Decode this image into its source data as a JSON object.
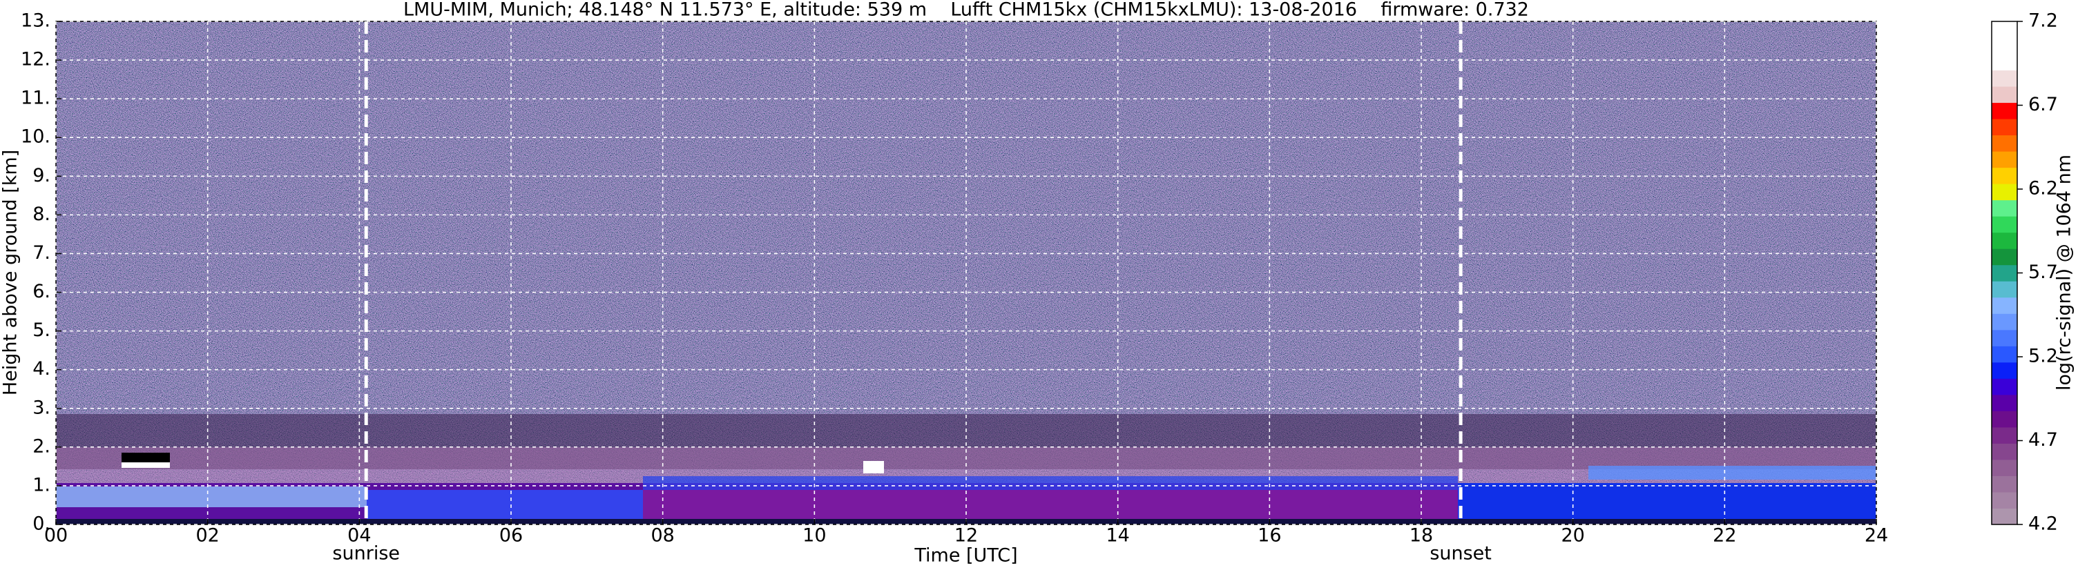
{
  "chart_data": {
    "type": "heatmap",
    "title": "LMU-MIM, Munich; 48.148° N 11.573° E, altitude: 539 m    Lufft CHM15kx (CHM15kxLMU): 13-08-2016    firmware: 0.732",
    "xlabel": "Time [UTC]",
    "ylabel": "Height above ground [km]",
    "xlim": [
      0,
      24
    ],
    "xticks": [
      {
        "value": 0,
        "label": "00"
      },
      {
        "value": 2,
        "label": "02"
      },
      {
        "value": 4,
        "label": "04"
      },
      {
        "value": 6,
        "label": "06"
      },
      {
        "value": 8,
        "label": "08"
      },
      {
        "value": 10,
        "label": "10"
      },
      {
        "value": 12,
        "label": "12"
      },
      {
        "value": 14,
        "label": "14"
      },
      {
        "value": 16,
        "label": "16"
      },
      {
        "value": 18,
        "label": "18"
      },
      {
        "value": 20,
        "label": "20"
      },
      {
        "value": 22,
        "label": "22"
      },
      {
        "value": 24,
        "label": "24"
      }
    ],
    "ylim": [
      0,
      13
    ],
    "yticks": [
      {
        "value": 0,
        "label": "0."
      },
      {
        "value": 1,
        "label": "1."
      },
      {
        "value": 2,
        "label": "2."
      },
      {
        "value": 3,
        "label": "3."
      },
      {
        "value": 4,
        "label": "4."
      },
      {
        "value": 5,
        "label": "5."
      },
      {
        "value": 6,
        "label": "6."
      },
      {
        "value": 7,
        "label": "7."
      },
      {
        "value": 8,
        "label": "8."
      },
      {
        "value": 9,
        "label": "9."
      },
      {
        "value": 10,
        "label": "10."
      },
      {
        "value": 11,
        "label": "11."
      },
      {
        "value": 12,
        "label": "12."
      },
      {
        "value": 13,
        "label": "13."
      }
    ],
    "grid": true,
    "annotations": [
      {
        "text": "sunrise",
        "x": 4.09
      },
      {
        "text": "sunset",
        "x": 18.52
      }
    ],
    "colorbar": {
      "label": "log(rc-signal) @ 1064 nm",
      "lim": [
        4.2,
        7.2
      ],
      "ticks": [
        4.2,
        4.7,
        5.2,
        5.7,
        6.2,
        6.7,
        7.2
      ],
      "colors": [
        "#ad95ad",
        "#a584a5",
        "#9b729c",
        "#915e94",
        "#86468e",
        "#7a2a8a",
        "#6c0e8c",
        "#5a00a8",
        "#3a00d8",
        "#0a20f8",
        "#2a58ff",
        "#4a78ff",
        "#6a98ff",
        "#86b4ff",
        "#58bcd0",
        "#22a48a",
        "#14943c",
        "#1cb83e",
        "#30d85a",
        "#5ef08c",
        "#e8f000",
        "#ffd000",
        "#ffa000",
        "#ff7000",
        "#ff3c00",
        "#ff0000",
        "#ecc8c8",
        "#f2dede",
        "#ffffff",
        "#ffffff",
        "#ffffff"
      ]
    }
  }
}
